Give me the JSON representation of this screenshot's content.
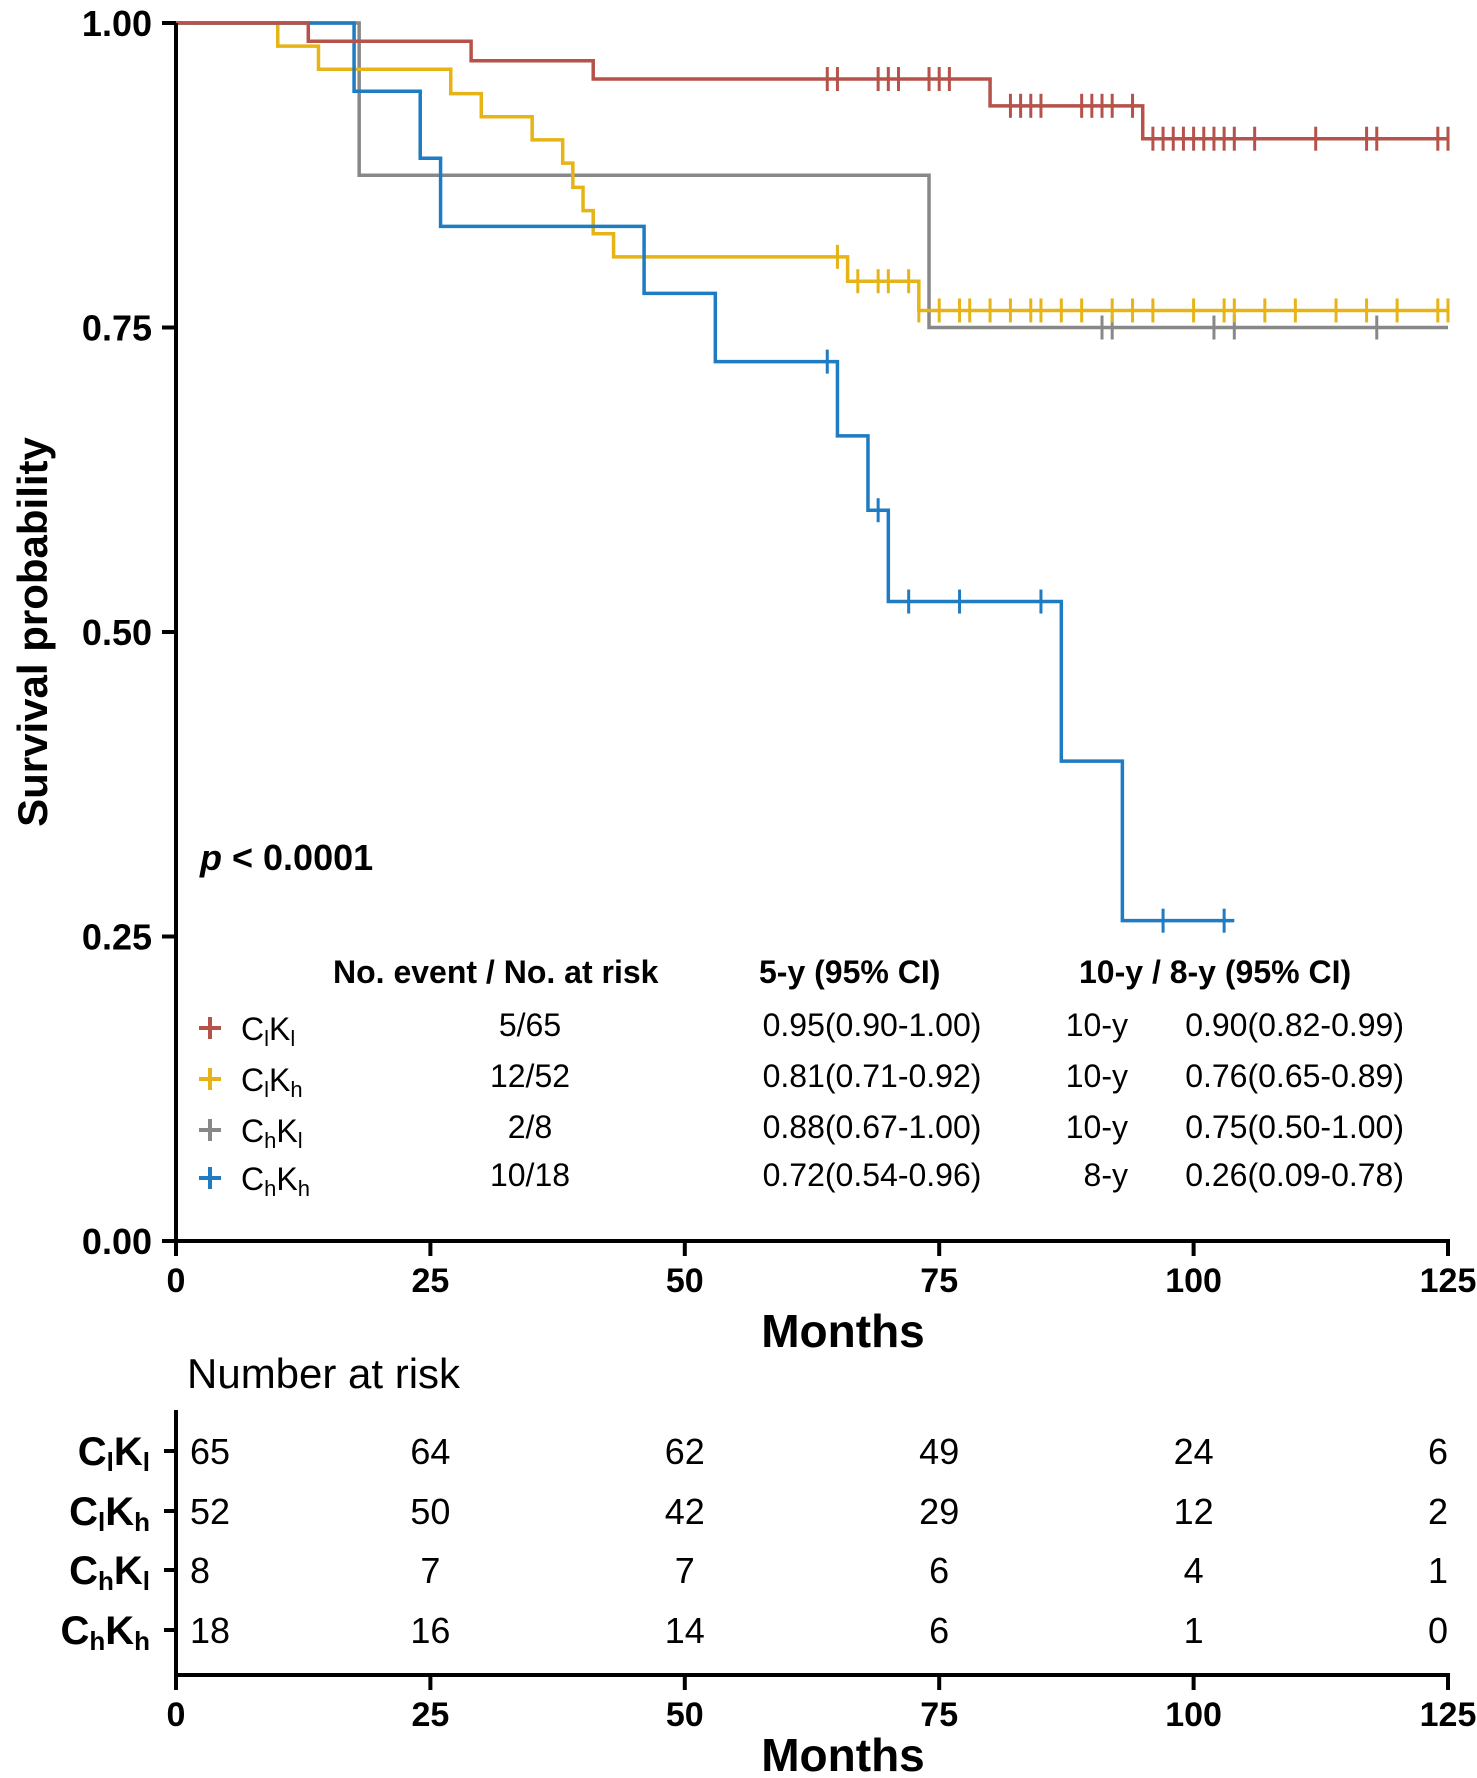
{
  "chart_data": {
    "type": "kaplan-meier",
    "ylabel": "Survival probability",
    "xlabel": "Months",
    "xlim": [
      0,
      125
    ],
    "ylim": [
      0,
      1
    ],
    "xticks": [
      0,
      25,
      50,
      75,
      100,
      125
    ],
    "xtick_labels": [
      "0",
      "25",
      "50",
      "75",
      "100",
      "125"
    ],
    "yticks": [
      0,
      0.25,
      0.5,
      0.75,
      1.0
    ],
    "ytick_labels": [
      "0.00",
      "0.25",
      "0.50",
      "0.75",
      "1.00"
    ],
    "p_value": {
      "p": "p",
      "text": " < 0.0001"
    },
    "table_headers": {
      "events": "No. event / No. at risk",
      "five_year": "5-y (95% CI)",
      "long_term": "10-y / 8-y (95% CI)"
    },
    "series": [
      {
        "name": "ClKl",
        "label_main1": "C",
        "label_sub1": "l",
        "label_main2": "K",
        "label_sub2": "l",
        "color": "#B5524A",
        "events": "5/65",
        "five_year": "0.95(0.90-1.00)",
        "long_term_label": "10-y",
        "long_term": "0.90(0.82-0.99)",
        "steps": [
          [
            0,
            1.0
          ],
          [
            13,
            0.985
          ],
          [
            29,
            0.969
          ],
          [
            41,
            0.954
          ],
          [
            80,
            0.932
          ],
          [
            95,
            0.905
          ],
          [
            125,
            0.905
          ]
        ],
        "censor_times": [
          64,
          65,
          69,
          70,
          71,
          74,
          75,
          76,
          82,
          83,
          84,
          85,
          89,
          90,
          91,
          92,
          94,
          96,
          97,
          98,
          99,
          100,
          101,
          102,
          103,
          104,
          106,
          112,
          117,
          118,
          124,
          125
        ],
        "at_risk": [
          "65",
          "64",
          "62",
          "49",
          "24",
          "6"
        ]
      },
      {
        "name": "ClKh",
        "label_main1": "C",
        "label_sub1": "l",
        "label_main2": "K",
        "label_sub2": "h",
        "color": "#E6B416",
        "events": "12/52",
        "five_year": "0.81(0.71-0.92)",
        "long_term_label": "10-y",
        "long_term": "0.76(0.65-0.89)",
        "steps": [
          [
            0,
            1.0
          ],
          [
            10,
            0.981
          ],
          [
            14,
            0.962
          ],
          [
            27,
            0.942
          ],
          [
            30,
            0.923
          ],
          [
            35,
            0.904
          ],
          [
            38,
            0.885
          ],
          [
            39,
            0.865
          ],
          [
            40,
            0.846
          ],
          [
            41,
            0.827
          ],
          [
            43,
            0.808
          ],
          [
            66,
            0.788
          ],
          [
            73,
            0.764
          ],
          [
            125,
            0.764
          ]
        ],
        "censor_times": [
          65,
          67,
          69,
          70,
          72,
          73,
          75,
          77,
          78,
          80,
          82,
          84,
          85,
          87,
          89,
          92,
          94,
          96,
          100,
          103,
          104,
          107,
          110,
          114,
          117,
          120,
          124,
          125
        ],
        "at_risk": [
          "52",
          "50",
          "42",
          "29",
          "12",
          "2"
        ]
      },
      {
        "name": "ChKl",
        "label_main1": "C",
        "label_sub1": "h",
        "label_main2": "K",
        "label_sub2": "l",
        "color": "#888888",
        "events": "2/8",
        "five_year": "0.88(0.67-1.00)",
        "long_term_label": "10-y",
        "long_term": "0.75(0.50-1.00)",
        "steps": [
          [
            0,
            1.0
          ],
          [
            18,
            0.875
          ],
          [
            74,
            0.75
          ],
          [
            125,
            0.75
          ]
        ],
        "censor_times": [
          91,
          92,
          102,
          104,
          118
        ],
        "at_risk": [
          "8",
          "7",
          "7",
          "6",
          "4",
          "1"
        ]
      },
      {
        "name": "ChKh",
        "label_main1": "C",
        "label_sub1": "h",
        "label_main2": "K",
        "label_sub2": "h",
        "color": "#1F7BC2",
        "events": "10/18",
        "five_year": "0.72(0.54-0.96)",
        "long_term_label": "8-y",
        "long_term": "0.26(0.09-0.78)",
        "steps": [
          [
            0,
            1.0
          ],
          [
            17.5,
            0.944
          ],
          [
            24,
            0.889
          ],
          [
            26,
            0.833
          ],
          [
            46,
            0.778
          ],
          [
            53,
            0.722
          ],
          [
            65,
            0.661
          ],
          [
            68,
            0.6
          ],
          [
            70,
            0.525
          ],
          [
            87,
            0.394
          ],
          [
            93,
            0.263
          ],
          [
            104,
            0.263
          ]
        ],
        "censor_times": [
          64,
          69,
          72,
          77,
          85,
          97,
          103
        ],
        "at_risk": [
          "18",
          "16",
          "14",
          "6",
          "1",
          "0"
        ]
      }
    ],
    "risk_table": {
      "title": "Number at risk",
      "xlabel": "Months",
      "times": [
        0,
        25,
        50,
        75,
        100,
        125
      ],
      "xtick_labels": [
        "0",
        "25",
        "50",
        "75",
        "100",
        "125"
      ]
    }
  }
}
